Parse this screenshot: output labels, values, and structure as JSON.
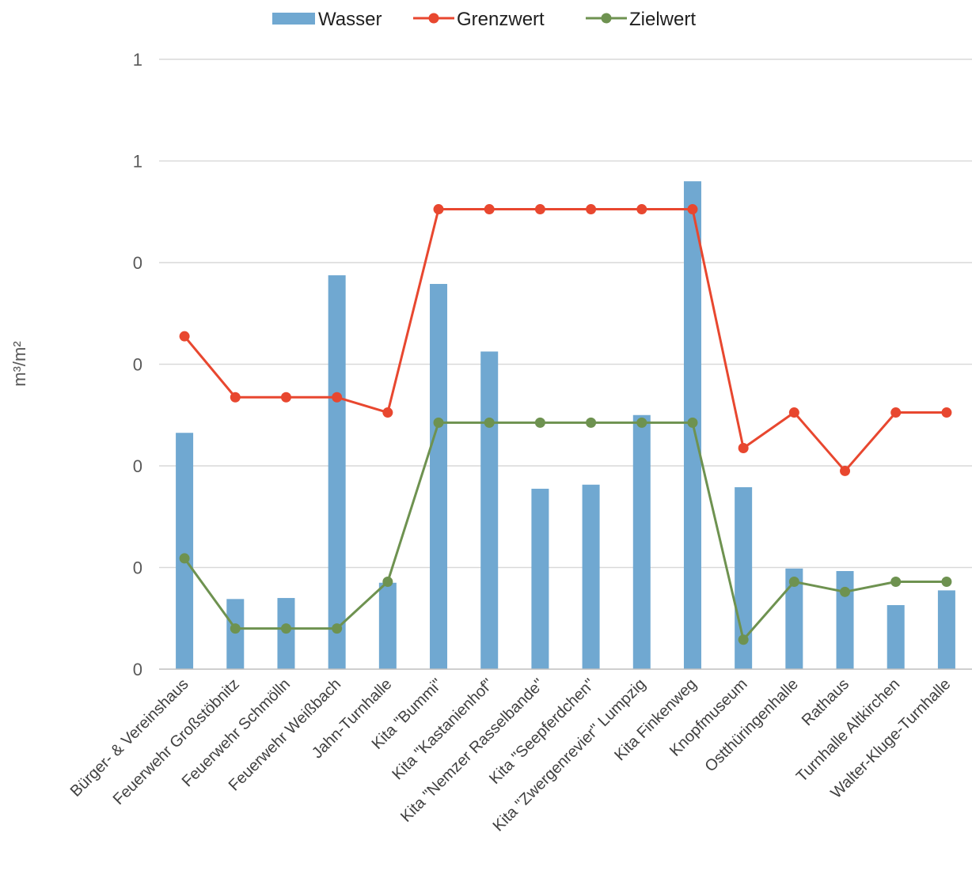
{
  "chart_data": {
    "type": "bar",
    "ylabel": "m³/m²",
    "ylim": [
      0,
      1.2
    ],
    "yticks": [
      0,
      0.2,
      0.4,
      0.6,
      0.8,
      1.0,
      1.2
    ],
    "ytick_labels": [
      "0",
      "0",
      "0",
      "0",
      "0",
      "1",
      "1"
    ],
    "grid": true,
    "legend_position": "top-center",
    "categories": [
      "Bürger- & Vereinshaus",
      "Feuerwehr Großstöbnitz",
      "Feuerwehr Schmölln",
      "Feuerwehr Weißbach",
      "Jahn-Turnhalle",
      "Kita \"Bummi\"",
      "Kita \"Kastanienhof\"",
      "Kita \"Nemzer Rasselbande\"",
      "Kita \"Seepferdchen\"",
      "Kita \"Zwergenrevier\" Lumpzig",
      "Kita Finkenweg",
      "Knopfmuseum",
      "Ostthüringenhalle",
      "Rathaus",
      "Turnhalle Altkirchen",
      "Walter-Kluge-Turnhalle"
    ],
    "series": [
      {
        "name": "Wasser",
        "kind": "bar",
        "color": "#70a8d1",
        "values": [
          0.465,
          0.138,
          0.14,
          0.775,
          0.17,
          0.758,
          0.625,
          0.355,
          0.363,
          0.5,
          0.96,
          0.358,
          0.198,
          0.193,
          0.126,
          0.155
        ]
      },
      {
        "name": "Grenzwert",
        "kind": "line",
        "color": "#e8472f",
        "values": [
          0.655,
          0.535,
          0.535,
          0.535,
          0.505,
          0.905,
          0.905,
          0.905,
          0.905,
          0.905,
          0.905,
          0.435,
          0.505,
          0.39,
          0.505,
          0.505
        ]
      },
      {
        "name": "Zielwert",
        "kind": "line",
        "color": "#6e9250",
        "values": [
          0.218,
          0.08,
          0.08,
          0.08,
          0.172,
          0.485,
          0.485,
          0.485,
          0.485,
          0.485,
          0.485,
          0.058,
          0.172,
          0.152,
          0.172,
          0.172
        ]
      }
    ]
  }
}
